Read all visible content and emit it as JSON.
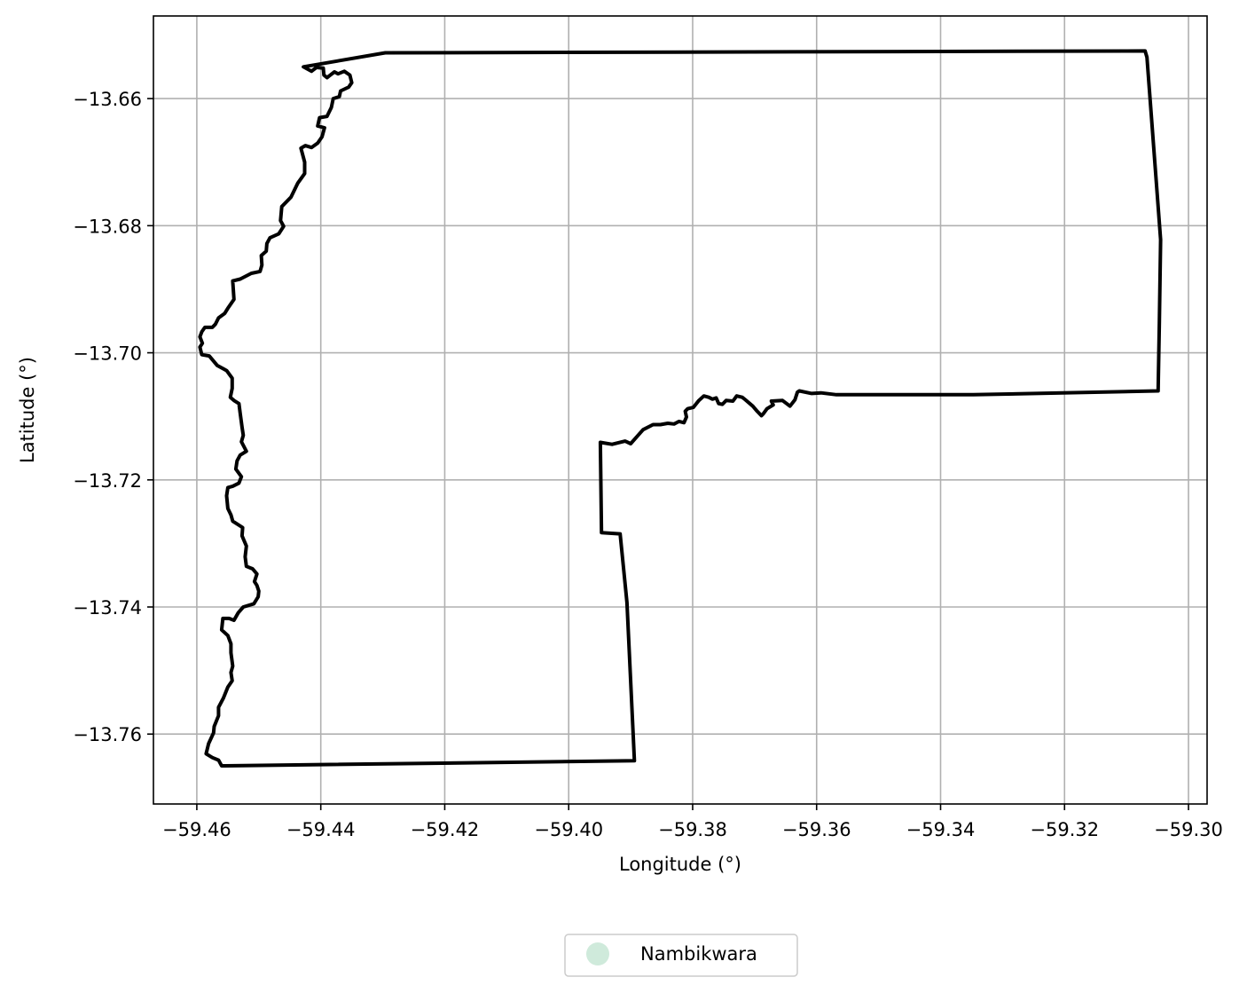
{
  "chart_data": {
    "type": "map",
    "xlabel": "Longitude (°)",
    "ylabel": "Latitude (°)",
    "xlim": [
      -59.467,
      -59.297
    ],
    "ylim": [
      -13.771,
      -13.647
    ],
    "x_ticks": [
      -59.46,
      -59.44,
      -59.42,
      -59.4,
      -59.38,
      -59.36,
      -59.34,
      -59.32,
      -59.3
    ],
    "x_tick_labels": [
      "−59.46",
      "−59.44",
      "−59.42",
      "−59.40",
      "−59.38",
      "−59.36",
      "−59.34",
      "−59.32",
      "−59.30"
    ],
    "y_ticks": [
      -13.66,
      -13.68,
      -13.7,
      -13.72,
      -13.74,
      -13.76
    ],
    "y_tick_labels": [
      "−13.66",
      "−13.68",
      "−13.70",
      "−13.72",
      "−13.74",
      "−13.76"
    ],
    "grid": true,
    "boundary_color": "#000000",
    "legend": {
      "placement": "bottom-center",
      "entries": [
        {
          "label": "Nambikwara",
          "color": "#cfeadb",
          "marker": "circle"
        }
      ]
    },
    "boundary": [
      [
        -59.4296,
        -13.6528
      ],
      [
        -59.307,
        -13.6525
      ],
      [
        -59.3067,
        -13.6535
      ],
      [
        -59.3045,
        -13.6822
      ],
      [
        -59.3047,
        -13.6951
      ],
      [
        -59.3049,
        -13.706
      ],
      [
        -59.3347,
        -13.7066
      ],
      [
        -59.3568,
        -13.7066
      ],
      [
        -59.3593,
        -13.7063
      ],
      [
        -59.3608,
        -13.7064
      ],
      [
        -59.3628,
        -13.706
      ],
      [
        -59.3631,
        -13.7062
      ],
      [
        -59.3635,
        -13.7074
      ],
      [
        -59.3643,
        -13.7084
      ],
      [
        -59.3655,
        -13.7075
      ],
      [
        -59.3673,
        -13.7076
      ],
      [
        -59.367,
        -13.7082
      ],
      [
        -59.368,
        -13.7088
      ],
      [
        -59.3686,
        -13.7096
      ],
      [
        -59.3689,
        -13.7099
      ],
      [
        -59.3696,
        -13.7092
      ],
      [
        -59.3703,
        -13.7084
      ],
      [
        -59.3715,
        -13.7074
      ],
      [
        -59.372,
        -13.707
      ],
      [
        -59.3729,
        -13.7068
      ],
      [
        -59.3735,
        -13.7076
      ],
      [
        -59.3746,
        -13.7075
      ],
      [
        -59.3752,
        -13.7081
      ],
      [
        -59.3758,
        -13.708
      ],
      [
        -59.3762,
        -13.7071
      ],
      [
        -59.3768,
        -13.7073
      ],
      [
        -59.3774,
        -13.707
      ],
      [
        -59.3782,
        -13.7068
      ],
      [
        -59.379,
        -13.7075
      ],
      [
        -59.3799,
        -13.7086
      ],
      [
        -59.3808,
        -13.7088
      ],
      [
        -59.3812,
        -13.7092
      ],
      [
        -59.381,
        -13.7101
      ],
      [
        -59.3814,
        -13.711
      ],
      [
        -59.3822,
        -13.7108
      ],
      [
        -59.383,
        -13.7112
      ],
      [
        -59.384,
        -13.7111
      ],
      [
        -59.3852,
        -13.7113
      ],
      [
        -59.3864,
        -13.7113
      ],
      [
        -59.388,
        -13.7121
      ],
      [
        -59.389,
        -13.7132
      ],
      [
        -59.39,
        -13.7143
      ],
      [
        -59.3909,
        -13.7139
      ],
      [
        -59.393,
        -13.7144
      ],
      [
        -59.3949,
        -13.7141
      ],
      [
        -59.3947,
        -13.7283
      ],
      [
        -59.3917,
        -13.7285
      ],
      [
        -59.3906,
        -13.7393
      ],
      [
        -59.3894,
        -13.7642
      ],
      [
        -59.456,
        -13.765
      ],
      [
        -59.4565,
        -13.7641
      ],
      [
        -59.4575,
        -13.7637
      ],
      [
        -59.4585,
        -13.7631
      ],
      [
        -59.4581,
        -13.7615
      ],
      [
        -59.4573,
        -13.7598
      ],
      [
        -59.4572,
        -13.7588
      ],
      [
        -59.4565,
        -13.7571
      ],
      [
        -59.4565,
        -13.7558
      ],
      [
        -59.4557,
        -13.7543
      ],
      [
        -59.455,
        -13.7526
      ],
      [
        -59.4543,
        -13.7516
      ],
      [
        -59.4545,
        -13.7503
      ],
      [
        -59.4542,
        -13.7493
      ],
      [
        -59.4545,
        -13.7472
      ],
      [
        -59.4545,
        -13.7458
      ],
      [
        -59.455,
        -13.7445
      ],
      [
        -59.456,
        -13.7436
      ],
      [
        -59.4558,
        -13.7418
      ],
      [
        -59.4548,
        -13.7418
      ],
      [
        -59.454,
        -13.7421
      ],
      [
        -59.4533,
        -13.7409
      ],
      [
        -59.4525,
        -13.74
      ],
      [
        -59.4508,
        -13.7395
      ],
      [
        -59.4501,
        -13.7384
      ],
      [
        -59.45,
        -13.7375
      ],
      [
        -59.4503,
        -13.7366
      ],
      [
        -59.4507,
        -13.736
      ],
      [
        -59.4503,
        -13.7348
      ],
      [
        -59.451,
        -13.734
      ],
      [
        -59.452,
        -13.7336
      ],
      [
        -59.4522,
        -13.7321
      ],
      [
        -59.452,
        -13.7304
      ],
      [
        -59.4527,
        -13.7288
      ],
      [
        -59.4526,
        -13.7275
      ],
      [
        -59.4542,
        -13.7265
      ],
      [
        -59.4545,
        -13.7255
      ],
      [
        -59.455,
        -13.7245
      ],
      [
        -59.4552,
        -13.7225
      ],
      [
        -59.455,
        -13.7212
      ],
      [
        -59.4542,
        -13.721
      ],
      [
        -59.4532,
        -13.7205
      ],
      [
        -59.4528,
        -13.7195
      ],
      [
        -59.4537,
        -13.7183
      ],
      [
        -59.4535,
        -13.717
      ],
      [
        -59.453,
        -13.7161
      ],
      [
        -59.452,
        -13.7155
      ],
      [
        -59.4528,
        -13.714
      ],
      [
        -59.4525,
        -13.713
      ],
      [
        -59.4527,
        -13.7117
      ],
      [
        -59.453,
        -13.7095
      ],
      [
        -59.4532,
        -13.708
      ],
      [
        -59.454,
        -13.7075
      ],
      [
        -59.4546,
        -13.707
      ],
      [
        -59.4543,
        -13.7056
      ],
      [
        -59.4543,
        -13.704
      ],
      [
        -59.4552,
        -13.7028
      ],
      [
        -59.4567,
        -13.702
      ],
      [
        -59.458,
        -13.7005
      ],
      [
        -59.4592,
        -13.7003
      ],
      [
        -59.4595,
        -13.6991
      ],
      [
        -59.4591,
        -13.6985
      ],
      [
        -59.4595,
        -13.6975
      ],
      [
        -59.4592,
        -13.6967
      ],
      [
        -59.4587,
        -13.696
      ],
      [
        -59.4575,
        -13.696
      ],
      [
        -59.457,
        -13.6955
      ],
      [
        -59.4565,
        -13.6945
      ],
      [
        -59.4555,
        -13.6938
      ],
      [
        -59.455,
        -13.693
      ],
      [
        -59.454,
        -13.6916
      ],
      [
        -59.4542,
        -13.6887
      ],
      [
        -59.453,
        -13.6884
      ],
      [
        -59.4512,
        -13.6875
      ],
      [
        -59.4498,
        -13.6872
      ],
      [
        -59.4495,
        -13.6862
      ],
      [
        -59.4496,
        -13.6847
      ],
      [
        -59.4488,
        -13.684
      ],
      [
        -59.4487,
        -13.6828
      ],
      [
        -59.4482,
        -13.6819
      ],
      [
        -59.4468,
        -13.6813
      ],
      [
        -59.446,
        -13.6801
      ],
      [
        -59.4465,
        -13.6792
      ],
      [
        -59.4463,
        -13.677
      ],
      [
        -59.4448,
        -13.6755
      ],
      [
        -59.4437,
        -13.6733
      ],
      [
        -59.4426,
        -13.6718
      ],
      [
        -59.4426,
        -13.67
      ],
      [
        -59.4432,
        -13.6678
      ],
      [
        -59.4425,
        -13.6674
      ],
      [
        -59.4415,
        -13.6677
      ],
      [
        -59.4405,
        -13.667
      ],
      [
        -59.4398,
        -13.666
      ],
      [
        -59.4394,
        -13.6646
      ],
      [
        -59.4405,
        -13.6643
      ],
      [
        -59.4402,
        -13.663
      ],
      [
        -59.439,
        -13.6628
      ],
      [
        -59.4383,
        -13.6614
      ],
      [
        -59.438,
        -13.66
      ],
      [
        -59.437,
        -13.6597
      ],
      [
        -59.4368,
        -13.6588
      ],
      [
        -59.4355,
        -13.6582
      ],
      [
        -59.435,
        -13.6575
      ],
      [
        -59.4353,
        -13.6563
      ],
      [
        -59.4362,
        -13.6557
      ],
      [
        -59.4372,
        -13.6561
      ],
      [
        -59.4378,
        -13.6558
      ],
      [
        -59.4386,
        -13.6564
      ],
      [
        -59.439,
        -13.6567
      ],
      [
        -59.4395,
        -13.6563
      ],
      [
        -59.4396,
        -13.6552
      ],
      [
        -59.4407,
        -13.6551
      ],
      [
        -59.4415,
        -13.6557
      ],
      [
        -59.4428,
        -13.655
      ],
      [
        -59.4296,
        -13.6528
      ]
    ]
  }
}
